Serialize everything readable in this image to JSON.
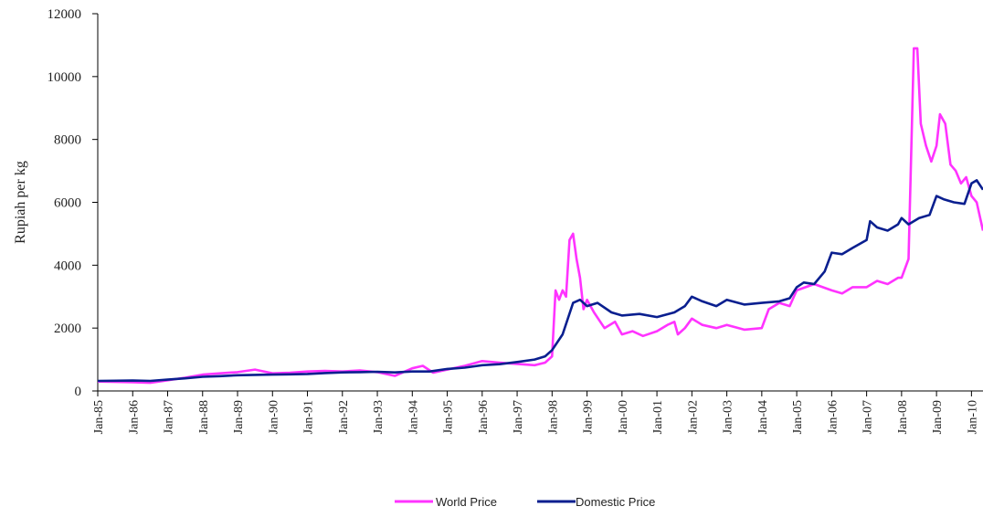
{
  "chart_data": {
    "type": "line",
    "title": "",
    "xlabel": "",
    "ylabel": "Rupiah per kg",
    "ylim": [
      0,
      12000
    ],
    "yticks": [
      0,
      2000,
      4000,
      6000,
      8000,
      10000,
      12000
    ],
    "xlim": [
      1985.0,
      2010.33
    ],
    "xticks": [
      {
        "x": 1985,
        "label": "Jan-85"
      },
      {
        "x": 1986,
        "label": "Jan-86"
      },
      {
        "x": 1987,
        "label": "Jan-87"
      },
      {
        "x": 1988,
        "label": "Jan-88"
      },
      {
        "x": 1989,
        "label": "Jan-89"
      },
      {
        "x": 1990,
        "label": "Jan-90"
      },
      {
        "x": 1991,
        "label": "Jan-91"
      },
      {
        "x": 1992,
        "label": "Jan-92"
      },
      {
        "x": 1993,
        "label": "Jan-93"
      },
      {
        "x": 1994,
        "label": "Jan-94"
      },
      {
        "x": 1995,
        "label": "Jan-95"
      },
      {
        "x": 1996,
        "label": "Jan-96"
      },
      {
        "x": 1997,
        "label": "Jan-97"
      },
      {
        "x": 1998,
        "label": "Jan-98"
      },
      {
        "x": 1999,
        "label": "Jan-99"
      },
      {
        "x": 2000,
        "label": "Jan-00"
      },
      {
        "x": 2001,
        "label": "Jan-01"
      },
      {
        "x": 2002,
        "label": "Jan-02"
      },
      {
        "x": 2003,
        "label": "Jan-03"
      },
      {
        "x": 2004,
        "label": "Jan-04"
      },
      {
        "x": 2005,
        "label": "Jan-05"
      },
      {
        "x": 2006,
        "label": "Jan-06"
      },
      {
        "x": 2007,
        "label": "Jan-07"
      },
      {
        "x": 2008,
        "label": "Jan-08"
      },
      {
        "x": 2009,
        "label": "Jan-09"
      },
      {
        "x": 2010,
        "label": "Jan-10"
      }
    ],
    "grid": false,
    "legend_position": "bottom",
    "series": [
      {
        "name": "World Price",
        "color": "#ff33ff",
        "points": [
          [
            1985.0,
            300
          ],
          [
            1986.0,
            280
          ],
          [
            1986.5,
            260
          ],
          [
            1987.0,
            340
          ],
          [
            1987.5,
            420
          ],
          [
            1988.0,
            520
          ],
          [
            1988.5,
            560
          ],
          [
            1989.0,
            600
          ],
          [
            1989.5,
            680
          ],
          [
            1990.0,
            560
          ],
          [
            1990.5,
            580
          ],
          [
            1991.0,
            620
          ],
          [
            1991.5,
            640
          ],
          [
            1992.0,
            620
          ],
          [
            1992.5,
            650
          ],
          [
            1993.0,
            600
          ],
          [
            1993.5,
            480
          ],
          [
            1994.0,
            720
          ],
          [
            1994.3,
            800
          ],
          [
            1994.6,
            580
          ],
          [
            1995.0,
            680
          ],
          [
            1995.5,
            800
          ],
          [
            1996.0,
            950
          ],
          [
            1996.5,
            900
          ],
          [
            1997.0,
            860
          ],
          [
            1997.5,
            820
          ],
          [
            1997.8,
            900
          ],
          [
            1998.0,
            1100
          ],
          [
            1998.1,
            3200
          ],
          [
            1998.2,
            2900
          ],
          [
            1998.3,
            3200
          ],
          [
            1998.4,
            3000
          ],
          [
            1998.5,
            4800
          ],
          [
            1998.6,
            5000
          ],
          [
            1998.7,
            4200
          ],
          [
            1998.8,
            3600
          ],
          [
            1998.9,
            2600
          ],
          [
            1999.0,
            2900
          ],
          [
            1999.2,
            2500
          ],
          [
            1999.5,
            2000
          ],
          [
            1999.8,
            2200
          ],
          [
            2000.0,
            1800
          ],
          [
            2000.3,
            1900
          ],
          [
            2000.6,
            1750
          ],
          [
            2001.0,
            1900
          ],
          [
            2001.3,
            2100
          ],
          [
            2001.5,
            2200
          ],
          [
            2001.6,
            1800
          ],
          [
            2001.8,
            2000
          ],
          [
            2002.0,
            2300
          ],
          [
            2002.3,
            2100
          ],
          [
            2002.7,
            2000
          ],
          [
            2003.0,
            2100
          ],
          [
            2003.5,
            1950
          ],
          [
            2004.0,
            2000
          ],
          [
            2004.2,
            2600
          ],
          [
            2004.5,
            2800
          ],
          [
            2004.8,
            2700
          ],
          [
            2005.0,
            3200
          ],
          [
            2005.5,
            3400
          ],
          [
            2006.0,
            3200
          ],
          [
            2006.3,
            3100
          ],
          [
            2006.6,
            3300
          ],
          [
            2007.0,
            3300
          ],
          [
            2007.3,
            3500
          ],
          [
            2007.6,
            3400
          ],
          [
            2007.9,
            3600
          ],
          [
            2008.0,
            3600
          ],
          [
            2008.2,
            4200
          ],
          [
            2008.35,
            10900
          ],
          [
            2008.45,
            10900
          ],
          [
            2008.55,
            8500
          ],
          [
            2008.7,
            7800
          ],
          [
            2008.85,
            7300
          ],
          [
            2009.0,
            7800
          ],
          [
            2009.1,
            8800
          ],
          [
            2009.25,
            8500
          ],
          [
            2009.4,
            7200
          ],
          [
            2009.55,
            7000
          ],
          [
            2009.7,
            6600
          ],
          [
            2009.85,
            6800
          ],
          [
            2010.0,
            6200
          ],
          [
            2010.15,
            6000
          ],
          [
            2010.33,
            5100
          ]
        ]
      },
      {
        "name": "Domestic Price",
        "color": "#0a1f8f",
        "points": [
          [
            1985.0,
            320
          ],
          [
            1986.0,
            330
          ],
          [
            1986.5,
            320
          ],
          [
            1987.0,
            360
          ],
          [
            1987.5,
            400
          ],
          [
            1988.0,
            450
          ],
          [
            1988.5,
            470
          ],
          [
            1989.0,
            500
          ],
          [
            1989.5,
            510
          ],
          [
            1990.0,
            520
          ],
          [
            1990.5,
            530
          ],
          [
            1991.0,
            540
          ],
          [
            1991.5,
            570
          ],
          [
            1992.0,
            590
          ],
          [
            1992.5,
            600
          ],
          [
            1993.0,
            610
          ],
          [
            1993.5,
            590
          ],
          [
            1994.0,
            620
          ],
          [
            1994.5,
            620
          ],
          [
            1995.0,
            700
          ],
          [
            1995.5,
            740
          ],
          [
            1996.0,
            820
          ],
          [
            1996.5,
            850
          ],
          [
            1997.0,
            920
          ],
          [
            1997.5,
            1000
          ],
          [
            1997.8,
            1100
          ],
          [
            1998.0,
            1300
          ],
          [
            1998.3,
            1800
          ],
          [
            1998.6,
            2800
          ],
          [
            1998.8,
            2900
          ],
          [
            1999.0,
            2700
          ],
          [
            1999.3,
            2800
          ],
          [
            1999.7,
            2500
          ],
          [
            2000.0,
            2400
          ],
          [
            2000.5,
            2450
          ],
          [
            2001.0,
            2350
          ],
          [
            2001.5,
            2500
          ],
          [
            2001.8,
            2700
          ],
          [
            2002.0,
            3000
          ],
          [
            2002.3,
            2850
          ],
          [
            2002.7,
            2700
          ],
          [
            2003.0,
            2900
          ],
          [
            2003.5,
            2750
          ],
          [
            2004.0,
            2800
          ],
          [
            2004.5,
            2850
          ],
          [
            2004.8,
            2950
          ],
          [
            2005.0,
            3300
          ],
          [
            2005.2,
            3450
          ],
          [
            2005.5,
            3400
          ],
          [
            2005.8,
            3800
          ],
          [
            2006.0,
            4400
          ],
          [
            2006.3,
            4350
          ],
          [
            2006.6,
            4550
          ],
          [
            2007.0,
            4800
          ],
          [
            2007.1,
            5400
          ],
          [
            2007.3,
            5200
          ],
          [
            2007.6,
            5100
          ],
          [
            2007.9,
            5300
          ],
          [
            2008.0,
            5500
          ],
          [
            2008.2,
            5300
          ],
          [
            2008.5,
            5500
          ],
          [
            2008.8,
            5600
          ],
          [
            2009.0,
            6200
          ],
          [
            2009.2,
            6100
          ],
          [
            2009.5,
            6000
          ],
          [
            2009.8,
            5950
          ],
          [
            2010.0,
            6600
          ],
          [
            2010.15,
            6700
          ],
          [
            2010.33,
            6400
          ]
        ]
      }
    ]
  }
}
